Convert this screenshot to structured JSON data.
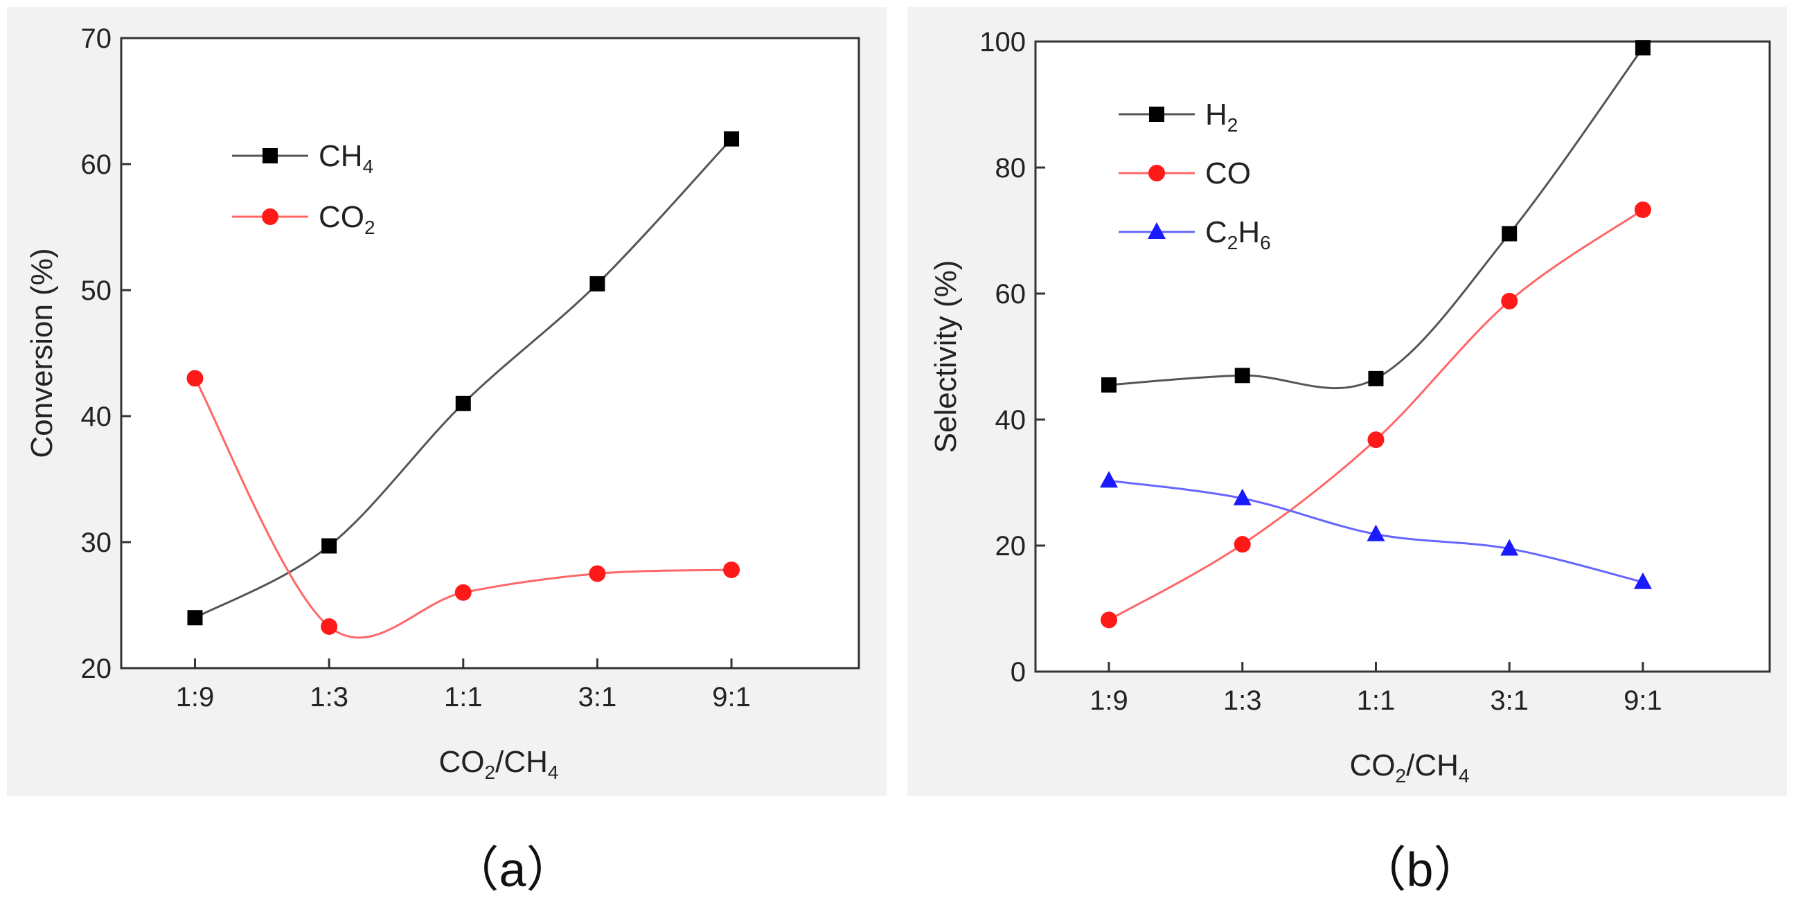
{
  "chart_data": [
    {
      "type": "line",
      "panel": "(a)",
      "caption": "（a）",
      "categories": [
        "1:9",
        "1:3",
        "1:1",
        "3:1",
        "9:1"
      ],
      "xlabel": {
        "main": "CO",
        "sub1": "2",
        "mid": "/CH",
        "sub2": "4"
      },
      "ylabel": "Conversion (%)",
      "ylim": [
        20,
        70
      ],
      "yticks": [
        20,
        30,
        40,
        50,
        60,
        70
      ],
      "legend_position": "top-left",
      "series": [
        {
          "name": "CH4",
          "label_main": "CH",
          "label_sub": "4",
          "marker": "square",
          "color": "#000000",
          "line_color": "#555555",
          "values": [
            24,
            29.7,
            41,
            50.5,
            62
          ]
        },
        {
          "name": "CO2",
          "label_main": "CO",
          "label_sub": "2",
          "marker": "circle",
          "color": "#ff1a1a",
          "line_color": "#ff6666",
          "values": [
            43,
            23.3,
            26,
            27.5,
            27.8
          ]
        }
      ]
    },
    {
      "type": "line",
      "panel": "(b)",
      "caption": "（b）",
      "categories": [
        "1:9",
        "1:3",
        "1:1",
        "3:1",
        "9:1"
      ],
      "xlabel": {
        "main": "CO",
        "sub1": "2",
        "mid": "/CH",
        "sub2": "4"
      },
      "ylabel": "Selectivity (%)",
      "ylim": [
        0,
        100
      ],
      "yticks": [
        0,
        20,
        40,
        60,
        80,
        100
      ],
      "legend_position": "top-left",
      "series": [
        {
          "name": "H2",
          "label_main": "H",
          "label_sub": "2",
          "marker": "square",
          "color": "#000000",
          "line_color": "#555555",
          "values": [
            45.5,
            47,
            46.5,
            69.5,
            99
          ]
        },
        {
          "name": "CO",
          "label_main": "CO",
          "label_sub": "",
          "marker": "circle",
          "color": "#ff1a1a",
          "line_color": "#ff6666",
          "values": [
            8.2,
            20.2,
            36.8,
            58.8,
            73.3
          ]
        },
        {
          "name": "C2H6",
          "label_main": "C",
          "label_sub": "2",
          "label_main2": "H",
          "label_sub2": "6",
          "marker": "triangle",
          "color": "#1a1aff",
          "line_color": "#6666ff",
          "values": [
            30.3,
            27.5,
            21.8,
            19.5,
            14.2
          ]
        }
      ]
    }
  ]
}
